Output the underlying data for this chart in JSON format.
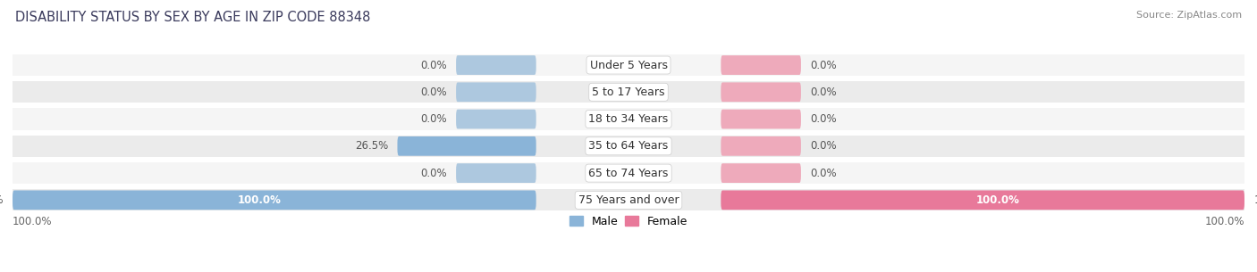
{
  "title": "DISABILITY STATUS BY SEX BY AGE IN ZIP CODE 88348",
  "source": "Source: ZipAtlas.com",
  "categories": [
    "Under 5 Years",
    "5 to 17 Years",
    "18 to 34 Years",
    "35 to 64 Years",
    "65 to 74 Years",
    "75 Years and over"
  ],
  "male_values": [
    0.0,
    0.0,
    0.0,
    26.5,
    0.0,
    100.0
  ],
  "female_values": [
    0.0,
    0.0,
    0.0,
    0.0,
    0.0,
    100.0
  ],
  "male_color": "#8ab4d8",
  "female_color": "#e8799a",
  "male_color_zero": "#adc8df",
  "female_color_zero": "#eeaabb",
  "bar_bg_color": "#e8e8e8",
  "row_bg_colors": [
    "#f5f5f5",
    "#ebebeb"
  ],
  "title_fontsize": 10.5,
  "source_fontsize": 8,
  "label_fontsize": 8.5,
  "category_fontsize": 9,
  "legend_fontsize": 9,
  "axis_label_fontsize": 8.5
}
